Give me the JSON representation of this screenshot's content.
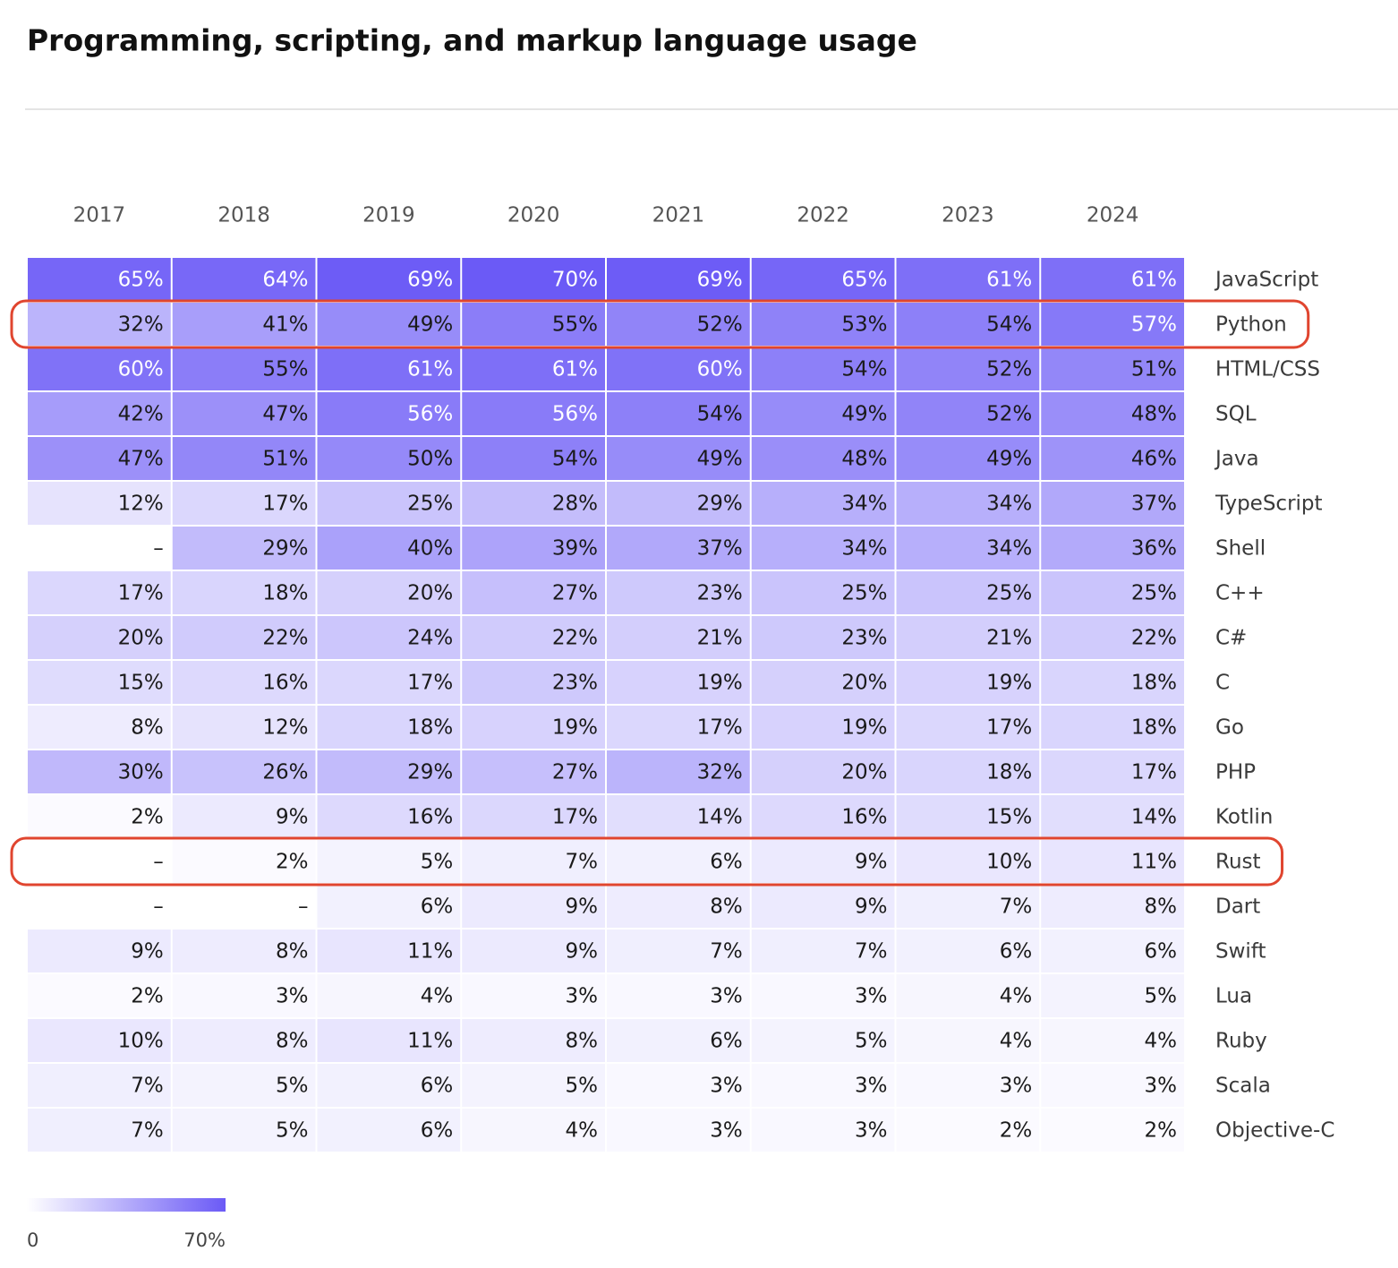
{
  "chart_data": {
    "type": "heatmap",
    "title": "Programming, scripting, and markup language usage",
    "x": [
      "2017",
      "2018",
      "2019",
      "2020",
      "2021",
      "2022",
      "2023",
      "2024"
    ],
    "categories": [
      "JavaScript",
      "Python",
      "HTML/CSS",
      "SQL",
      "Java",
      "TypeScript",
      "Shell",
      "C++",
      "C#",
      "C",
      "Go",
      "PHP",
      "Kotlin",
      "Rust",
      "Dart",
      "Swift",
      "Lua",
      "Ruby",
      "Scala",
      "Objective-C"
    ],
    "values": [
      [
        65,
        64,
        69,
        70,
        69,
        65,
        61,
        61
      ],
      [
        32,
        41,
        49,
        55,
        52,
        53,
        54,
        57
      ],
      [
        60,
        55,
        61,
        61,
        60,
        54,
        52,
        51
      ],
      [
        42,
        47,
        56,
        56,
        54,
        49,
        52,
        48
      ],
      [
        47,
        51,
        50,
        54,
        49,
        48,
        49,
        46
      ],
      [
        12,
        17,
        25,
        28,
        29,
        34,
        34,
        37
      ],
      [
        null,
        29,
        40,
        39,
        37,
        34,
        34,
        36
      ],
      [
        17,
        18,
        20,
        27,
        23,
        25,
        25,
        25
      ],
      [
        20,
        22,
        24,
        22,
        21,
        23,
        21,
        22
      ],
      [
        15,
        16,
        17,
        23,
        19,
        20,
        19,
        18
      ],
      [
        8,
        12,
        18,
        19,
        17,
        19,
        17,
        18
      ],
      [
        30,
        26,
        29,
        27,
        32,
        20,
        18,
        17
      ],
      [
        2,
        9,
        16,
        17,
        14,
        16,
        15,
        14
      ],
      [
        null,
        2,
        5,
        7,
        6,
        9,
        10,
        11
      ],
      [
        null,
        null,
        6,
        9,
        8,
        9,
        7,
        8
      ],
      [
        9,
        8,
        11,
        9,
        7,
        7,
        6,
        6
      ],
      [
        2,
        3,
        4,
        3,
        3,
        3,
        4,
        5
      ],
      [
        10,
        8,
        11,
        8,
        6,
        5,
        4,
        4
      ],
      [
        7,
        5,
        6,
        5,
        3,
        3,
        3,
        3
      ],
      [
        7,
        5,
        6,
        4,
        3,
        3,
        2,
        2
      ]
    ],
    "value_labels": [
      [
        "65%",
        "64%",
        "69%",
        "70%",
        "69%",
        "65%",
        "61%",
        "61%"
      ],
      [
        "32%",
        "41%",
        "49%",
        "55%",
        "52%",
        "53%",
        "54%",
        "57%"
      ],
      [
        "60%",
        "55%",
        "61%",
        "61%",
        "60%",
        "54%",
        "52%",
        "51%"
      ],
      [
        "42%",
        "47%",
        "56%",
        "56%",
        "54%",
        "49%",
        "52%",
        "48%"
      ],
      [
        "47%",
        "51%",
        "50%",
        "54%",
        "49%",
        "48%",
        "49%",
        "46%"
      ],
      [
        "12%",
        "17%",
        "25%",
        "28%",
        "29%",
        "34%",
        "34%",
        "37%"
      ],
      [
        "–",
        "29%",
        "40%",
        "39%",
        "37%",
        "34%",
        "34%",
        "36%"
      ],
      [
        "17%",
        "18%",
        "20%",
        "27%",
        "23%",
        "25%",
        "25%",
        "25%"
      ],
      [
        "20%",
        "22%",
        "24%",
        "22%",
        "21%",
        "23%",
        "21%",
        "22%"
      ],
      [
        "15%",
        "16%",
        "17%",
        "23%",
        "19%",
        "20%",
        "19%",
        "18%"
      ],
      [
        "8%",
        "12%",
        "18%",
        "19%",
        "17%",
        "19%",
        "17%",
        "18%"
      ],
      [
        "30%",
        "26%",
        "29%",
        "27%",
        "32%",
        "20%",
        "18%",
        "17%"
      ],
      [
        "2%",
        "9%",
        "16%",
        "17%",
        "14%",
        "16%",
        "15%",
        "14%"
      ],
      [
        "–",
        "2%",
        "5%",
        "7%",
        "6%",
        "9%",
        "10%",
        "11%"
      ],
      [
        "–",
        "–",
        "6%",
        "9%",
        "8%",
        "9%",
        "7%",
        "8%"
      ],
      [
        "9%",
        "8%",
        "11%",
        "9%",
        "7%",
        "7%",
        "6%",
        "6%"
      ],
      [
        "2%",
        "3%",
        "4%",
        "3%",
        "3%",
        "3%",
        "4%",
        "5%"
      ],
      [
        "10%",
        "8%",
        "11%",
        "8%",
        "6%",
        "5%",
        "4%",
        "4%"
      ],
      [
        "7%",
        "5%",
        "6%",
        "5%",
        "3%",
        "3%",
        "3%",
        "3%"
      ],
      [
        "7%",
        "5%",
        "6%",
        "4%",
        "3%",
        "3%",
        "2%",
        "2%"
      ]
    ],
    "zlim": [
      0,
      70
    ],
    "zticks": [
      0,
      {
        "value": 70,
        "label": "70%"
      }
    ],
    "colorscale": [
      "#ffffff",
      "#6b5af6"
    ],
    "highlighted_rows": [
      1,
      13
    ],
    "highlight_color": "#e0452f"
  }
}
